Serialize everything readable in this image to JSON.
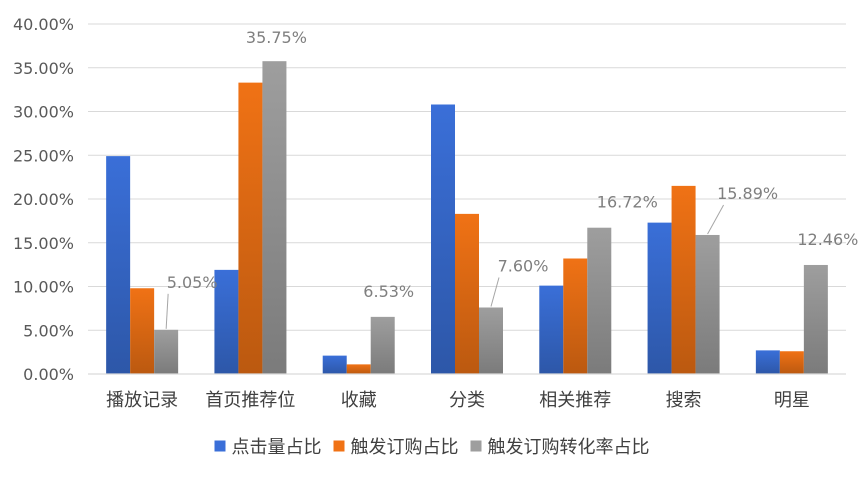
{
  "chart_data": {
    "type": "bar",
    "categories": [
      "播放记录",
      "首页推荐位",
      "收藏",
      "分类",
      "相关推荐",
      "搜索",
      "明星"
    ],
    "series": [
      {
        "name": "点击量占比",
        "color": "#3a6fd8",
        "values": [
          24.9,
          11.9,
          2.1,
          30.8,
          10.1,
          17.3,
          2.7
        ]
      },
      {
        "name": "触发订购占比",
        "color": "#f07215",
        "values": [
          9.8,
          33.3,
          1.1,
          18.3,
          13.2,
          21.5,
          2.6
        ]
      },
      {
        "name": "触发订购转化率占比",
        "color": "#9e9e9e",
        "values": [
          5.05,
          35.75,
          6.53,
          7.6,
          16.72,
          15.89,
          12.46
        ]
      }
    ],
    "data_labels": {
      "series_index": 2,
      "texts": [
        "5.05%",
        "35.75%",
        "6.53%",
        "7.60%",
        "16.72%",
        "15.89%",
        "12.46%"
      ]
    },
    "yaxis": {
      "ticks": [
        0,
        5,
        10,
        15,
        20,
        25,
        30,
        35,
        40
      ],
      "tick_labels": [
        "0.00%",
        "5.00%",
        "10.00%",
        "15.00%",
        "20.00%",
        "25.00%",
        "30.00%",
        "35.00%",
        "40.00%"
      ]
    },
    "ylim": [
      0,
      40
    ],
    "grid": true,
    "legend_position": "bottom",
    "title": "",
    "xlabel": "",
    "ylabel": ""
  }
}
